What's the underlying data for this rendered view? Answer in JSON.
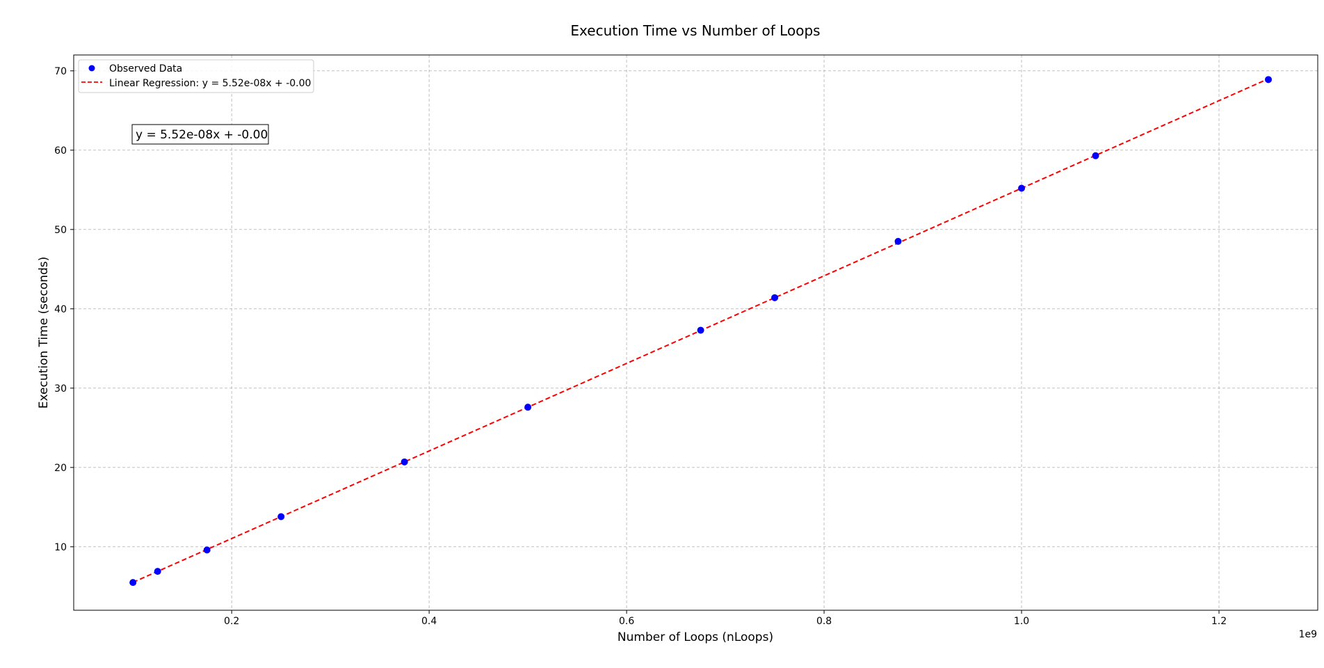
{
  "chart_data": {
    "type": "scatter",
    "title": "Execution Time vs Number of Loops",
    "xlabel": "Number of Loops (nLoops)",
    "ylabel": "Execution Time (seconds)",
    "x_offset_label": "1e9",
    "xlim": [
      0.04,
      1.3
    ],
    "ylim": [
      2.0,
      72.0
    ],
    "x_ticks": [
      0.2,
      0.4,
      0.6,
      0.8,
      1.0,
      1.2
    ],
    "x_tick_labels": [
      "0.2",
      "0.4",
      "0.6",
      "0.8",
      "1.0",
      "1.2"
    ],
    "y_ticks": [
      10,
      20,
      30,
      40,
      50,
      60,
      70
    ],
    "y_tick_labels": [
      "10",
      "20",
      "30",
      "40",
      "50",
      "60",
      "70"
    ],
    "grid": true,
    "legend_position": "top-left",
    "series": [
      {
        "name": "Observed Data",
        "kind": "scatter",
        "color": "#0000ff",
        "x": [
          0.1,
          0.125,
          0.175,
          0.25,
          0.375,
          0.5,
          0.675,
          0.75,
          0.875,
          1.0,
          1.075,
          1.25
        ],
        "y": [
          5.5,
          6.9,
          9.6,
          13.8,
          20.7,
          27.6,
          37.3,
          41.4,
          48.5,
          55.2,
          59.3,
          68.9
        ]
      },
      {
        "name": "Linear Regression: y = 5.52e-08x + -0.00",
        "kind": "line",
        "style": "dashed",
        "color": "#ff0000",
        "x": [
          0.1,
          1.25
        ],
        "y": [
          5.52,
          69.0
        ]
      }
    ],
    "annotations": [
      {
        "text": "y = 5.52e-08x + -0.00",
        "placement": "upper-left"
      }
    ]
  }
}
